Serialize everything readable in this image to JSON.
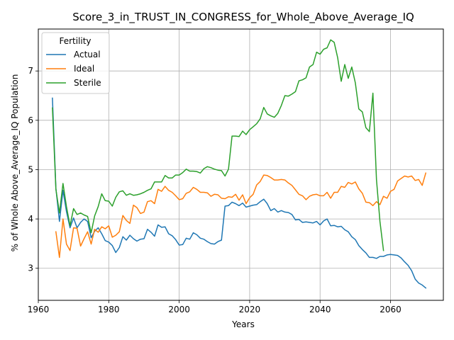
{
  "chart_data": {
    "type": "line",
    "title": "Score_3_in_TRUST_IN_CONGRESS_for_Whole_Above_Average_IQ",
    "xlabel": "Years",
    "ylabel": "% of Whole Above_Average_IQ Population",
    "xlim": [
      1960,
      2075
    ],
    "ylim": [
      2.35,
      7.85
    ],
    "xticks": [
      1960,
      1980,
      2000,
      2020,
      2040,
      2060
    ],
    "yticks": [
      3,
      4,
      5,
      6,
      7
    ],
    "grid": true,
    "legend": {
      "title": "Fertility",
      "placement": "top-left"
    },
    "series": [
      {
        "name": "Actual",
        "color": "#1f77b4",
        "x": [
          1964,
          1965,
          1966,
          1967,
          1968,
          1969,
          1970,
          1971,
          1972,
          1973,
          1974,
          1975,
          1976,
          1977,
          1978,
          1979,
          1980,
          1981,
          1982,
          1983,
          1984,
          1985,
          1986,
          1987,
          1988,
          1989,
          1990,
          1991,
          1992,
          1993,
          1994,
          1995,
          1996,
          1997,
          1998,
          1999,
          2000,
          2001,
          2002,
          2003,
          2004,
          2005,
          2006,
          2007,
          2008,
          2009,
          2010,
          2011,
          2012,
          2013,
          2014,
          2015,
          2016,
          2017,
          2018,
          2019,
          2020,
          2021,
          2022,
          2023,
          2024,
          2025,
          2026,
          2027,
          2028,
          2029,
          2030,
          2031,
          2032,
          2033,
          2034,
          2035,
          2036,
          2037,
          2038,
          2039,
          2040,
          2041,
          2042,
          2043,
          2044,
          2045,
          2046,
          2047,
          2048,
          2049,
          2050,
          2051,
          2052,
          2053,
          2054,
          2055,
          2056,
          2057,
          2058,
          2059,
          2060,
          2061,
          2062,
          2063,
          2064,
          2065,
          2066,
          2067,
          2068,
          2069,
          2070
        ],
        "values": [
          6.45,
          4.62,
          3.95,
          4.58,
          4.15,
          3.82,
          4.02,
          3.82,
          3.93,
          4.0,
          3.95,
          3.62,
          3.75,
          3.82,
          3.7,
          3.56,
          3.53,
          3.46,
          3.32,
          3.42,
          3.64,
          3.57,
          3.67,
          3.6,
          3.55,
          3.59,
          3.6,
          3.79,
          3.73,
          3.65,
          3.88,
          3.83,
          3.84,
          3.7,
          3.66,
          3.58,
          3.47,
          3.48,
          3.61,
          3.59,
          3.72,
          3.68,
          3.61,
          3.59,
          3.54,
          3.5,
          3.49,
          3.54,
          3.57,
          4.26,
          4.27,
          4.34,
          4.31,
          4.27,
          4.32,
          4.24,
          4.26,
          4.28,
          4.29,
          4.35,
          4.4,
          4.31,
          4.17,
          4.21,
          4.14,
          4.17,
          4.14,
          4.13,
          4.09,
          3.98,
          3.99,
          3.93,
          3.94,
          3.93,
          3.92,
          3.95,
          3.88,
          3.96,
          4.0,
          3.86,
          3.87,
          3.84,
          3.85,
          3.78,
          3.74,
          3.64,
          3.58,
          3.46,
          3.38,
          3.31,
          3.22,
          3.22,
          3.2,
          3.24,
          3.24,
          3.27,
          3.28,
          3.27,
          3.26,
          3.21,
          3.13,
          3.06,
          2.95,
          2.78,
          2.7,
          2.66,
          2.6
        ]
      },
      {
        "name": "Ideal",
        "color": "#ff7f0e",
        "x": [
          1965,
          1966,
          1967,
          1968,
          1969,
          1970,
          1971,
          1972,
          1973,
          1974,
          1975,
          1976,
          1977,
          1978,
          1979,
          1980,
          1981,
          1982,
          1983,
          1984,
          1985,
          1986,
          1987,
          1988,
          1989,
          1990,
          1991,
          1992,
          1993,
          1994,
          1995,
          1996,
          1997,
          1998,
          1999,
          2000,
          2001,
          2002,
          2003,
          2004,
          2005,
          2006,
          2007,
          2008,
          2009,
          2010,
          2011,
          2012,
          2013,
          2014,
          2015,
          2016,
          2017,
          2018,
          2019,
          2020,
          2021,
          2022,
          2023,
          2024,
          2025,
          2026,
          2027,
          2028,
          2029,
          2030,
          2031,
          2032,
          2033,
          2034,
          2035,
          2036,
          2037,
          2038,
          2039,
          2040,
          2041,
          2042,
          2043,
          2044,
          2045,
          2046,
          2047,
          2048,
          2049,
          2050,
          2051,
          2052,
          2053,
          2054,
          2055,
          2056,
          2057,
          2058,
          2059,
          2060,
          2061,
          2062,
          2063,
          2064,
          2065,
          2066,
          2067,
          2068,
          2069,
          2070
        ],
        "values": [
          3.74,
          3.22,
          4.0,
          3.49,
          3.36,
          3.82,
          3.81,
          3.45,
          3.6,
          3.74,
          3.49,
          3.79,
          3.73,
          3.84,
          3.8,
          3.86,
          3.63,
          3.67,
          3.74,
          4.07,
          3.97,
          3.91,
          4.28,
          4.23,
          4.11,
          4.14,
          4.35,
          4.37,
          4.31,
          4.6,
          4.56,
          4.66,
          4.58,
          4.54,
          4.47,
          4.39,
          4.41,
          4.52,
          4.55,
          4.64,
          4.6,
          4.54,
          4.54,
          4.53,
          4.46,
          4.5,
          4.49,
          4.42,
          4.41,
          4.45,
          4.44,
          4.5,
          4.38,
          4.49,
          4.31,
          4.43,
          4.5,
          4.69,
          4.76,
          4.89,
          4.88,
          4.84,
          4.79,
          4.79,
          4.8,
          4.79,
          4.73,
          4.68,
          4.59,
          4.5,
          4.47,
          4.39,
          4.46,
          4.49,
          4.5,
          4.47,
          4.47,
          4.54,
          4.42,
          4.54,
          4.54,
          4.66,
          4.64,
          4.74,
          4.71,
          4.75,
          4.61,
          4.52,
          4.34,
          4.33,
          4.27,
          4.35,
          4.29,
          4.46,
          4.42,
          4.56,
          4.6,
          4.77,
          4.82,
          4.87,
          4.85,
          4.87,
          4.78,
          4.8,
          4.68,
          4.93
        ]
      },
      {
        "name": "Sterile",
        "color": "#2ca02c",
        "x": [
          1964,
          1965,
          1966,
          1967,
          1968,
          1969,
          1970,
          1971,
          1972,
          1973,
          1974,
          1975,
          1976,
          1977,
          1978,
          1979,
          1980,
          1981,
          1982,
          1983,
          1984,
          1985,
          1986,
          1987,
          1988,
          1989,
          1990,
          1991,
          1992,
          1993,
          1994,
          1995,
          1996,
          1997,
          1998,
          1999,
          2000,
          2001,
          2002,
          2003,
          2004,
          2005,
          2006,
          2007,
          2008,
          2009,
          2010,
          2011,
          2012,
          2013,
          2014,
          2015,
          2016,
          2017,
          2018,
          2019,
          2020,
          2021,
          2022,
          2023,
          2024,
          2025,
          2026,
          2027,
          2028,
          2029,
          2030,
          2031,
          2032,
          2033,
          2034,
          2035,
          2036,
          2037,
          2038,
          2039,
          2040,
          2041,
          2042,
          2043,
          2044,
          2045,
          2046,
          2047,
          2048,
          2049,
          2050,
          2051,
          2052,
          2053,
          2054,
          2055,
          2056,
          2057,
          2058
        ],
        "values": [
          6.25,
          4.6,
          4.12,
          4.72,
          4.25,
          3.86,
          4.21,
          4.09,
          4.12,
          4.08,
          4.05,
          3.72,
          4.06,
          4.25,
          4.51,
          4.37,
          4.36,
          4.26,
          4.44,
          4.55,
          4.57,
          4.48,
          4.51,
          4.48,
          4.49,
          4.51,
          4.54,
          4.58,
          4.61,
          4.75,
          4.75,
          4.75,
          4.88,
          4.83,
          4.83,
          4.89,
          4.89,
          4.94,
          5.01,
          4.97,
          4.97,
          4.96,
          4.93,
          5.02,
          5.06,
          5.04,
          5.01,
          4.99,
          4.98,
          4.87,
          5.01,
          5.68,
          5.68,
          5.67,
          5.78,
          5.71,
          5.81,
          5.87,
          5.93,
          6.03,
          6.26,
          6.13,
          6.09,
          6.06,
          6.14,
          6.3,
          6.5,
          6.49,
          6.53,
          6.58,
          6.8,
          6.82,
          6.86,
          7.08,
          7.13,
          7.38,
          7.34,
          7.44,
          7.47,
          7.63,
          7.58,
          7.27,
          6.79,
          7.13,
          6.85,
          7.08,
          6.76,
          6.23,
          6.17,
          5.85,
          5.77,
          6.55,
          4.8,
          3.95,
          3.36
        ]
      }
    ]
  }
}
